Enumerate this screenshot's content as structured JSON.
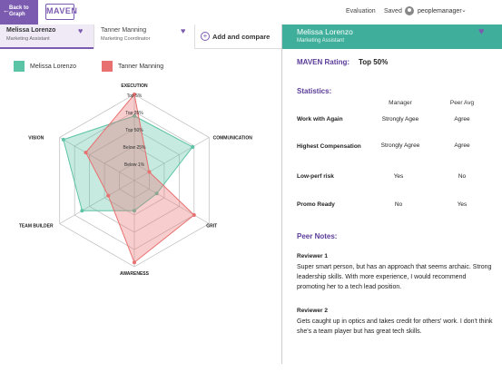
{
  "topbar": {
    "back_label_line1": "Back to",
    "back_label_line2": "Graph",
    "logo": "MAVEN",
    "nav": [
      "Evaluation",
      "Saved"
    ],
    "user": "peoplemanager"
  },
  "compare": {
    "people": [
      {
        "name": "Melissa Lorenzo",
        "role": "Marketing Assistant"
      },
      {
        "name": "Tanner Manning",
        "role": "Marketing Coordinator"
      }
    ],
    "add_label": "Add and compare"
  },
  "legend": [
    {
      "name": "Melissa Lorenzo",
      "color": "#5cc4a6"
    },
    {
      "name": "Tanner Manning",
      "color": "#e87070"
    }
  ],
  "chart_data": {
    "type": "radar",
    "axes": [
      "EXECUTION",
      "COMMUNICATION",
      "GRIT",
      "AWARENESS",
      "TEAM BUILDER",
      "VISION"
    ],
    "levels": [
      "Top 5%",
      "Top 25%",
      "Top 50%",
      "Below 25%",
      "Below 1%"
    ],
    "series": [
      {
        "name": "Melissa Lorenzo",
        "color": "#5cc4a6",
        "values": [
          0.75,
          0.78,
          0.3,
          0.35,
          0.7,
          0.95
        ]
      },
      {
        "name": "Tanner Manning",
        "color": "#e87070",
        "values": [
          1.0,
          0.2,
          0.8,
          0.95,
          0.35,
          0.65
        ]
      }
    ]
  },
  "profile": {
    "name": "Melissa Lorenzo",
    "role": "Marketing Assistant",
    "rating_label": "MAVEN Rating:",
    "rating_value": "Top 50%",
    "statistics_label": "Statistics:",
    "columns": [
      "Manager",
      "Peer Avg"
    ],
    "rows": [
      {
        "label": "Work with Again",
        "manager": "Strongly Agee",
        "peer": "Agree"
      },
      {
        "label": "Highest Compensation",
        "manager": "Strongly Agree",
        "peer": "Agree"
      },
      {
        "label": "Low-perf risk",
        "manager": "Yes",
        "peer": "No"
      },
      {
        "label": "Promo Ready",
        "manager": "No",
        "peer": "Yes"
      }
    ],
    "notes_label": "Peer Notes:",
    "notes": [
      {
        "reviewer": "Reviewer 1",
        "text": "Super smart person, but has an approach that seems archaic. Strong leadership skills. With more experience, I would recommend promoting her to a tech lead position."
      },
      {
        "reviewer": "Reviewer 2",
        "text": "Gets caught up in optics and takes credit for others' work. I don't think she's a team player but has great tech skills."
      }
    ]
  },
  "colors": {
    "accent": "#7b5bb0",
    "teal": "#3fae9b",
    "salmon": "#e87070"
  }
}
